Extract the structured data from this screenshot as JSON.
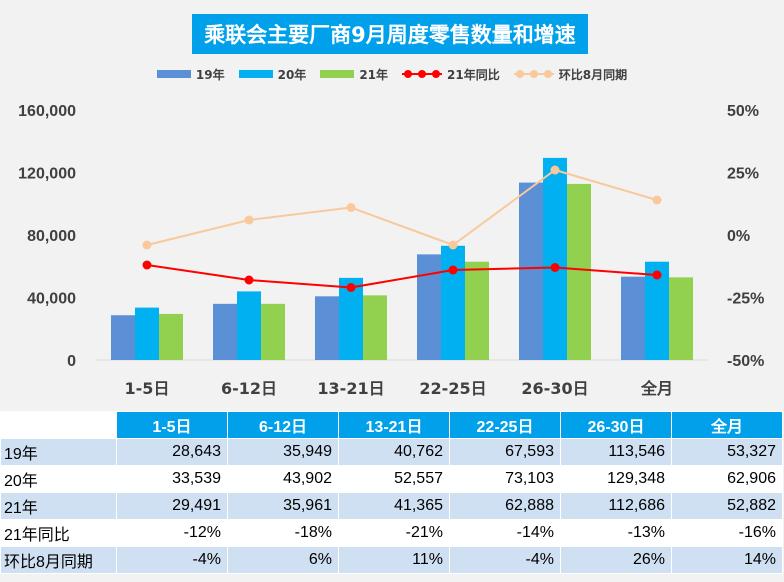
{
  "chart_data": {
    "type": "bar",
    "title": "乘联会主要厂商9月周度零售数量和增速",
    "categories": [
      "1-5日",
      "6-12日",
      "13-21日",
      "22-25日",
      "26-30日",
      "全月"
    ],
    "series": [
      {
        "name": "19年",
        "kind": "bar",
        "axis": "left",
        "color": "#5b8fd6",
        "values": [
          28643,
          35949,
          40762,
          67593,
          113546,
          53327
        ]
      },
      {
        "name": "20年",
        "kind": "bar",
        "axis": "left",
        "color": "#00b0f0",
        "values": [
          33539,
          43902,
          52557,
          73103,
          129348,
          62906
        ]
      },
      {
        "name": "21年",
        "kind": "bar",
        "axis": "left",
        "color": "#92d050",
        "values": [
          29491,
          35961,
          41365,
          62888,
          112686,
          52882
        ]
      },
      {
        "name": "21年同比",
        "kind": "line",
        "axis": "right",
        "color": "#ff0000",
        "values": [
          -12,
          -18,
          -21,
          -14,
          -13,
          -16
        ]
      },
      {
        "name": "环比8月同期",
        "kind": "line",
        "axis": "right",
        "color": "#f9c89b",
        "values": [
          -4,
          6,
          11,
          -4,
          26,
          14
        ]
      }
    ],
    "left_axis": {
      "ylim": [
        0,
        160000
      ],
      "ticks": [
        "0",
        "40,000",
        "80,000",
        "120,000",
        "160,000"
      ]
    },
    "right_axis": {
      "ylim": [
        -50,
        50
      ],
      "ticks": [
        "-50%",
        "-25%",
        "0%",
        "25%",
        "50%"
      ]
    },
    "legend_position": "top"
  },
  "table": {
    "header": [
      "1-5日",
      "6-12日",
      "13-21日",
      "22-25日",
      "26-30日",
      "全月"
    ],
    "rows": [
      {
        "label": "19年",
        "cells": [
          "28,643",
          "35,949",
          "40,762",
          "67,593",
          "113,546",
          "53,327"
        ]
      },
      {
        "label": "20年",
        "cells": [
          "33,539",
          "43,902",
          "52,557",
          "73,103",
          "129,348",
          "62,906"
        ]
      },
      {
        "label": "21年",
        "cells": [
          "29,491",
          "35,961",
          "41,365",
          "62,888",
          "112,686",
          "52,882"
        ]
      },
      {
        "label": "21年同比",
        "cells": [
          "-12%",
          "-18%",
          "-21%",
          "-14%",
          "-13%",
          "-16%"
        ]
      },
      {
        "label": "环比8月同期",
        "cells": [
          "-4%",
          "6%",
          "11%",
          "-4%",
          "26%",
          "14%"
        ]
      }
    ]
  }
}
